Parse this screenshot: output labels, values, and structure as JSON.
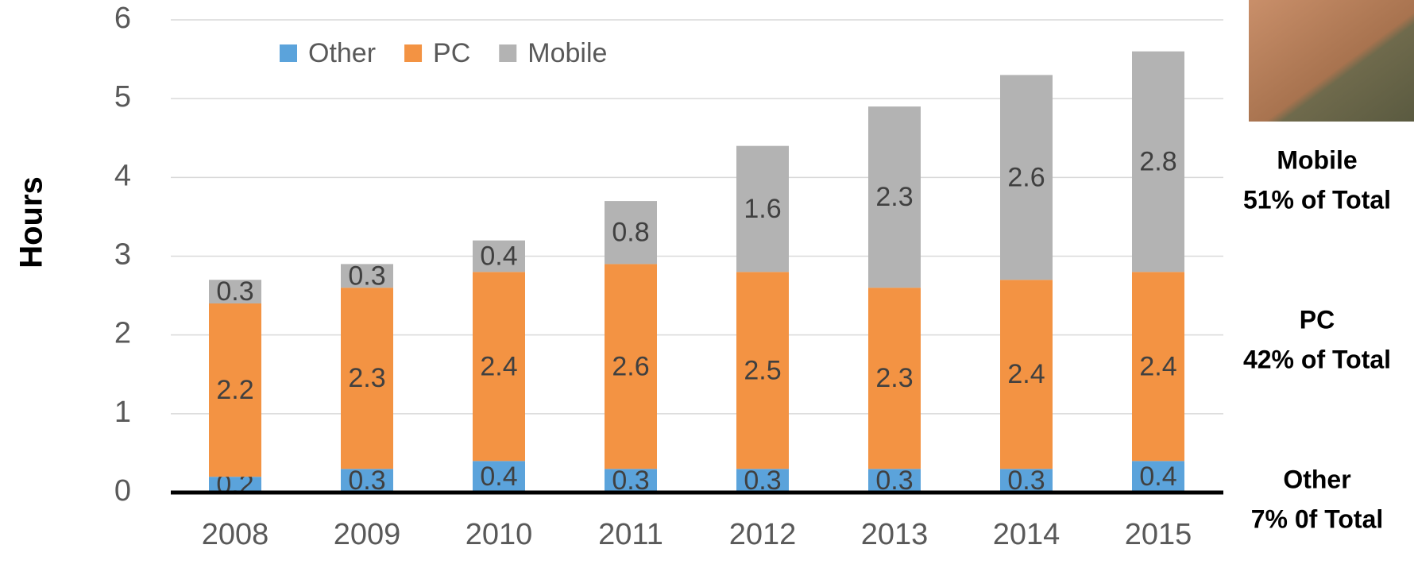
{
  "chart_data": {
    "type": "stacked_bar",
    "y_label": "Hours",
    "categories": [
      "2008",
      "2009",
      "2010",
      "2011",
      "2012",
      "2013",
      "2014",
      "2015"
    ],
    "series": [
      {
        "name": "Other",
        "color": "#5ba3db",
        "values": [
          0.2,
          0.3,
          0.4,
          0.3,
          0.3,
          0.3,
          0.3,
          0.4
        ]
      },
      {
        "name": "PC",
        "color": "#f39343",
        "values": [
          2.2,
          2.3,
          2.4,
          2.6,
          2.5,
          2.3,
          2.4,
          2.4
        ]
      },
      {
        "name": "Mobile",
        "color": "#b3b3b3",
        "values": [
          0.3,
          0.3,
          0.4,
          0.8,
          1.6,
          2.3,
          2.6,
          2.8
        ]
      }
    ],
    "ylim": [
      0,
      6
    ],
    "yticks": [
      0,
      1,
      2,
      3,
      4,
      5,
      6
    ],
    "grid": true,
    "legend": "top-left",
    "annotations": [
      [
        "Mobile",
        "51% of Total"
      ],
      [
        "PC",
        "42% of Total"
      ],
      [
        "Other",
        "7% 0f Total"
      ]
    ]
  }
}
